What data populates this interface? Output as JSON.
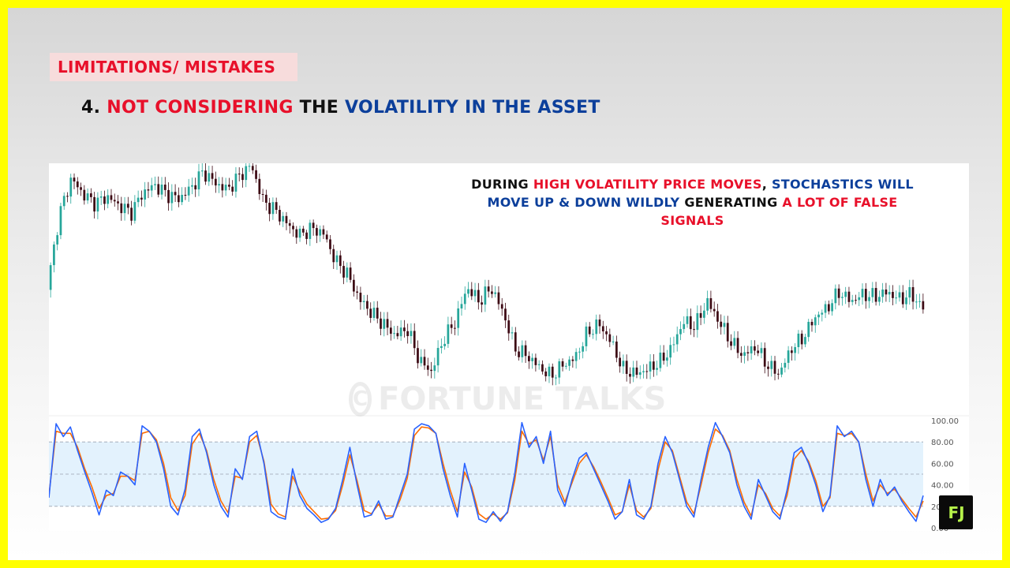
{
  "section_badge": "LIMITATIONS/ MISTAKES",
  "heading": {
    "number": "4.",
    "part1": "NOT CONSIDERING",
    "part2": "THE",
    "part3": "VOLATILITY IN THE ASSET"
  },
  "annotation": {
    "w1": "DURING",
    "w2": "HIGH VOLATILITY PRICE MOVES",
    "w3": ",",
    "w4": "STOCHASTICS WILL MOVE UP & DOWN WILDLY",
    "w5": "GENERATING",
    "w6": "A LOT OF FALSE SIGNALS"
  },
  "watermark": {
    "symbol": "C",
    "text": "FORTUNE TALKS"
  },
  "logo": {
    "text": "FJ"
  },
  "colors": {
    "border": "#ffff00",
    "accent_red": "#e8102a",
    "accent_blue": "#0c3f9b",
    "candle_up": "#26a69a",
    "candle_down": "#3d0a14",
    "stoch_k": "#2962ff",
    "stoch_d": "#ff6d00",
    "band_fill": "#e3f2fd"
  },
  "chart_data": [
    {
      "type": "candlestick",
      "title": "",
      "price_path": [
        45,
        78,
        94,
        87,
        83,
        86,
        82,
        79,
        88,
        91,
        87,
        85,
        90,
        97,
        92,
        89,
        95,
        100,
        84,
        80,
        74,
        69,
        72,
        70,
        58,
        52,
        41,
        35,
        30,
        25,
        28,
        14,
        9,
        23,
        31,
        46,
        40,
        46,
        35,
        19,
        16,
        11,
        7,
        12,
        15,
        26,
        30,
        22,
        10,
        8,
        10,
        13,
        19,
        31,
        29,
        40,
        31,
        22,
        16,
        20,
        12,
        8,
        19,
        24,
        33,
        37,
        44,
        40,
        43,
        42,
        44,
        41,
        43,
        37
      ],
      "candle_count": 260
    },
    {
      "type": "line",
      "title": "",
      "y_ticks": [
        "100.00",
        "80.00",
        "60.00",
        "40.00",
        "20.00",
        "0.00"
      ],
      "ylim": [
        0,
        100
      ],
      "band": [
        20,
        80
      ],
      "series": [
        {
          "key": "k",
          "values": [
            28,
            97,
            85,
            94,
            72,
            52,
            33,
            12,
            35,
            30,
            52,
            48,
            40,
            95,
            90,
            80,
            55,
            20,
            12,
            36,
            85,
            92,
            70,
            40,
            20,
            10,
            55,
            45,
            85,
            90,
            60,
            15,
            10,
            8,
            55,
            30,
            18,
            12,
            5,
            8,
            18,
            45,
            75,
            40,
            10,
            12,
            25,
            8,
            10,
            30,
            50,
            92,
            97,
            95,
            88,
            55,
            30,
            10,
            60,
            35,
            8,
            5,
            15,
            6,
            15,
            50,
            98,
            75,
            85,
            60,
            90,
            35,
            20,
            45,
            65,
            70,
            55,
            40,
            25,
            8,
            15,
            45,
            12,
            8,
            20,
            60,
            85,
            70,
            45,
            20,
            10,
            45,
            75,
            98,
            85,
            70,
            40,
            20,
            8,
            45,
            30,
            15,
            8,
            35,
            70,
            75,
            60,
            40,
            15,
            30,
            95,
            85,
            90,
            80,
            45,
            20,
            45,
            30,
            38,
            25,
            15,
            6,
            30
          ]
        },
        {
          "key": "d",
          "values": [
            30,
            90,
            88,
            88,
            75,
            55,
            38,
            18,
            30,
            32,
            48,
            48,
            44,
            88,
            90,
            82,
            60,
            28,
            16,
            30,
            78,
            88,
            72,
            45,
            25,
            14,
            48,
            46,
            80,
            86,
            62,
            22,
            13,
            10,
            48,
            34,
            22,
            15,
            8,
            9,
            16,
            40,
            68,
            44,
            16,
            13,
            22,
            11,
            11,
            26,
            46,
            86,
            94,
            93,
            88,
            60,
            35,
            15,
            52,
            38,
            13,
            8,
            13,
            8,
            14,
            44,
            90,
            78,
            82,
            63,
            85,
            40,
            24,
            42,
            60,
            68,
            57,
            43,
            28,
            12,
            15,
            40,
            16,
            10,
            18,
            54,
            80,
            72,
            48,
            24,
            13,
            40,
            70,
            92,
            86,
            72,
            45,
            24,
            11,
            40,
            32,
            18,
            11,
            30,
            64,
            72,
            62,
            44,
            20,
            28,
            88,
            86,
            88,
            80,
            50,
            25,
            40,
            32,
            36,
            27,
            18,
            10,
            25
          ]
        }
      ]
    }
  ]
}
